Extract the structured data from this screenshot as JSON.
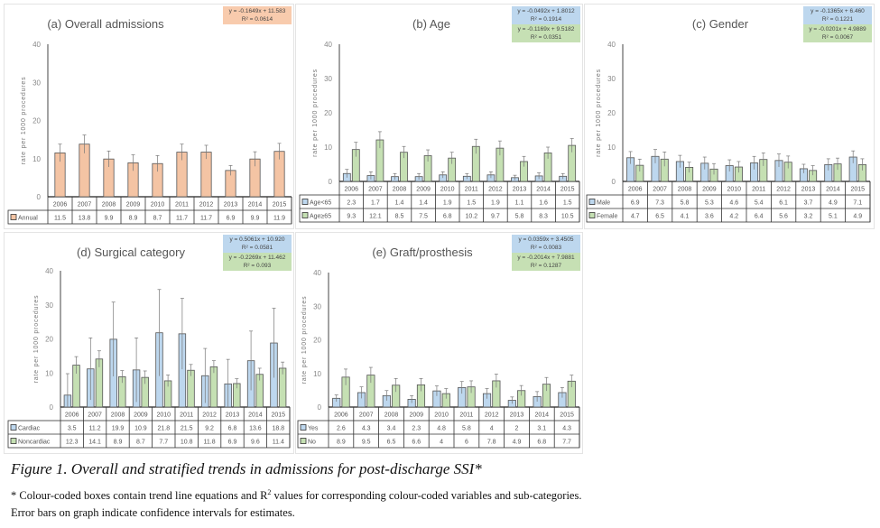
{
  "colors": {
    "orange": "#f4c4a4",
    "blue": "#bdd7ee",
    "green": "#c5e0b3",
    "box_orange": "#f8cbad",
    "box_blue": "#bdd7ee",
    "box_green": "#c6e0b4"
  },
  "chart_data": [
    {
      "type": "bar",
      "title": "(a) Overall admissions",
      "ylabel": "rate per 1000 procedures",
      "ylim": [
        0,
        40
      ],
      "yticks": [
        "0",
        "10",
        "20",
        "30",
        "40"
      ],
      "categories": [
        "2006",
        "2007",
        "2008",
        "2009",
        "2010",
        "2011",
        "2012",
        "2013",
        "2014",
        "2015"
      ],
      "series": [
        {
          "name": "Annual",
          "color": "#f4c4a4",
          "values": [
            11.5,
            13.8,
            9.9,
            8.9,
            8.7,
            11.7,
            11.7,
            6.9,
            9.9,
            11.9
          ],
          "ci_upper": [
            13.8,
            16.2,
            12.0,
            11.0,
            10.8,
            13.8,
            13.5,
            8.2,
            11.8,
            14.0
          ]
        }
      ],
      "trendlines": [
        {
          "color": "#f8cbad",
          "equation": "y = -0.1649x + 11.583",
          "r2": "R² = 0.0614"
        }
      ]
    },
    {
      "type": "bar",
      "title": "(b) Age",
      "ylabel": "rate per 1000 procedures",
      "ylim": [
        0,
        40
      ],
      "yticks": [
        "0",
        "10",
        "20",
        "30",
        "40"
      ],
      "categories": [
        "2006",
        "2007",
        "2008",
        "2009",
        "2010",
        "2011",
        "2012",
        "2013",
        "2014",
        "2015"
      ],
      "series": [
        {
          "name": "Age<65",
          "color": "#bdd7ee",
          "values": [
            2.3,
            1.7,
            1.4,
            1.4,
            1.9,
            1.5,
            1.9,
            1.1,
            1.6,
            1.5
          ],
          "ci_upper": [
            3.5,
            2.8,
            2.3,
            2.3,
            2.8,
            2.3,
            2.8,
            1.8,
            2.5,
            2.3
          ]
        },
        {
          "name": "Age≥65",
          "color": "#c5e0b3",
          "values": [
            9.3,
            12.1,
            8.5,
            7.5,
            6.8,
            10.2,
            9.7,
            5.8,
            8.3,
            10.5
          ],
          "ci_upper": [
            11.4,
            14.5,
            10.2,
            9.2,
            8.5,
            12.3,
            11.8,
            7.3,
            10.0,
            12.5
          ]
        }
      ],
      "trendlines": [
        {
          "color": "#bdd7ee",
          "equation": "y = -0.0492x + 1.8012",
          "r2": "R² = 0.1914"
        },
        {
          "color": "#c6e0b4",
          "equation": "y = -0.1169x + 9.5182",
          "r2": "R² = 0.0351"
        }
      ]
    },
    {
      "type": "bar",
      "title": "(c) Gender",
      "ylabel": "rate per 1000 procedures",
      "ylim": [
        0,
        40
      ],
      "yticks": [
        "0",
        "10",
        "20",
        "30",
        "40"
      ],
      "categories": [
        "2006",
        "2007",
        "2008",
        "2009",
        "2010",
        "2011",
        "2012",
        "2013",
        "2014",
        "2015"
      ],
      "series": [
        {
          "name": "Male",
          "color": "#bdd7ee",
          "values": [
            6.9,
            7.3,
            5.8,
            5.3,
            4.6,
            5.4,
            6.1,
            3.7,
            4.9,
            7.1
          ],
          "ci_upper": [
            8.7,
            9.3,
            7.6,
            7.1,
            6.3,
            7.3,
            8.0,
            5.0,
            6.6,
            8.9
          ]
        },
        {
          "name": "Female",
          "color": "#c5e0b3",
          "values": [
            4.7,
            6.5,
            4.1,
            3.6,
            4.2,
            6.4,
            5.6,
            3.2,
            5.1,
            4.9
          ],
          "ci_upper": [
            6.5,
            8.6,
            5.6,
            5.2,
            5.8,
            8.3,
            7.4,
            4.6,
            6.8,
            6.6
          ]
        }
      ],
      "trendlines": [
        {
          "color": "#bdd7ee",
          "equation": "y = -0.1365x + 6.460",
          "r2": "R² = 0.1221"
        },
        {
          "color": "#c6e0b4",
          "equation": "y = -0.0201x + 4.9889",
          "r2": "R² = 0.0067"
        }
      ]
    },
    {
      "type": "bar",
      "title": "(d) Surgical category",
      "ylabel": "rate per 1000 procedures",
      "ylim": [
        0,
        40
      ],
      "yticks": [
        "0",
        "10",
        "20",
        "30",
        "40"
      ],
      "categories": [
        "2006",
        "2007",
        "2008",
        "2009",
        "2010",
        "2011",
        "2012",
        "2013",
        "2014",
        "2015"
      ],
      "series": [
        {
          "name": "Cardiac",
          "color": "#bdd7ee",
          "values": [
            3.5,
            11.2,
            19.9,
            10.9,
            21.8,
            21.5,
            9.2,
            6.8,
            13.6,
            18.8
          ],
          "ci_upper": [
            9.8,
            20.3,
            30.8,
            20.3,
            34.5,
            31.9,
            17.2,
            14.0,
            22.3,
            29.0
          ]
        },
        {
          "name": "Noncardiac",
          "color": "#c5e0b3",
          "values": [
            12.3,
            14.1,
            8.9,
            8.7,
            7.7,
            10.8,
            11.8,
            6.9,
            9.6,
            11.4
          ],
          "ci_upper": [
            14.8,
            16.5,
            10.7,
            10.6,
            9.4,
            12.5,
            13.6,
            8.3,
            11.4,
            13.2
          ]
        }
      ],
      "trendlines": [
        {
          "color": "#bdd7ee",
          "equation": "y = 0.5061x + 10.920",
          "r2": "R² = 0.0581"
        },
        {
          "color": "#c6e0b4",
          "equation": "y = -0.2269x + 11.462",
          "r2": "R² = 0.093"
        }
      ]
    },
    {
      "type": "bar",
      "title": "(e) Graft/prosthesis",
      "ylabel": "rate per 1000 procedures",
      "ylim": [
        0,
        40
      ],
      "yticks": [
        "0",
        "10",
        "20",
        "30",
        "40"
      ],
      "categories": [
        "2006",
        "2007",
        "2008",
        "2009",
        "2010",
        "2011",
        "2012",
        "2013",
        "2014",
        "2015"
      ],
      "series": [
        {
          "name": "Yes",
          "color": "#bdd7ee",
          "values": [
            2.6,
            4.3,
            3.4,
            2.3,
            4.8,
            5.8,
            4.0,
            2.0,
            3.1,
            4.3
          ],
          "ci_upper": [
            3.6,
            6.0,
            4.9,
            3.4,
            6.3,
            7.6,
            5.5,
            3.0,
            4.6,
            5.8
          ]
        },
        {
          "name": "No",
          "color": "#c5e0b3",
          "values": [
            8.9,
            9.5,
            6.5,
            6.6,
            4.0,
            6.0,
            7.8,
            4.9,
            6.8,
            7.7
          ],
          "ci_upper": [
            11.3,
            11.8,
            8.5,
            8.5,
            5.5,
            7.8,
            9.8,
            6.4,
            8.8,
            9.5
          ]
        }
      ],
      "trendlines": [
        {
          "color": "#bdd7ee",
          "equation": "y = 0.0359x + 3.4505",
          "r2": "R² = 0.0083"
        },
        {
          "color": "#c6e0b4",
          "equation": "y = -0.2014x + 7.9881",
          "r2": "R² = 0.1287"
        }
      ]
    }
  ],
  "caption": {
    "title": "Figure 1. Overall and stratified trends in admissions for post-discharge SSI*",
    "note_prefix": "* Colour-coded boxes contain trend line equations and R",
    "note_sup": "2",
    "note_suffix": " values for corresponding colour-coded variables and sub-categories.",
    "note2": "Error bars on graph indicate confidence intervals for estimates."
  }
}
